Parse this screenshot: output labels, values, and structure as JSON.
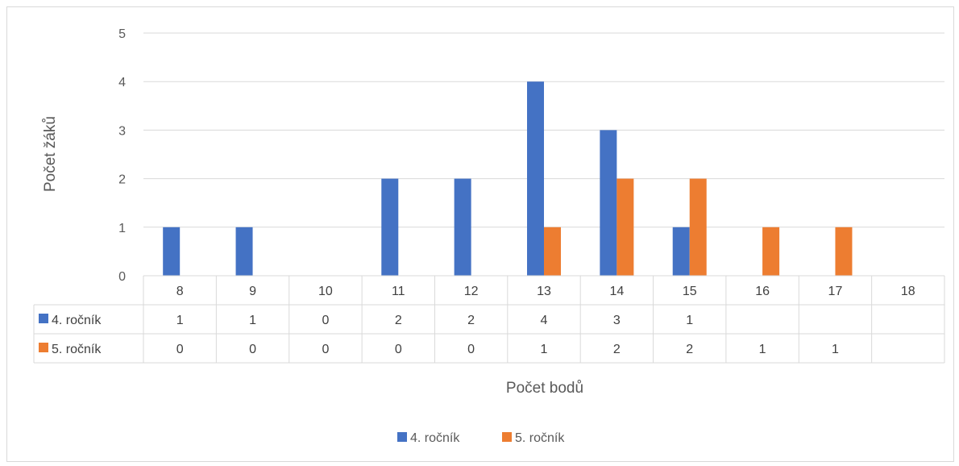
{
  "chart_data": {
    "type": "bar",
    "categories": [
      "8",
      "9",
      "10",
      "11",
      "12",
      "13",
      "14",
      "15",
      "16",
      "17",
      "18"
    ],
    "series": [
      {
        "name": "4. ročník",
        "color": "#4472C4",
        "values": [
          1,
          1,
          0,
          2,
          2,
          4,
          3,
          1,
          null,
          null,
          null
        ]
      },
      {
        "name": "5. ročník",
        "color": "#ED7D31",
        "values": [
          0,
          0,
          0,
          0,
          0,
          1,
          2,
          2,
          1,
          1,
          null
        ]
      }
    ],
    "title": "",
    "xlabel": "Počet bodů",
    "ylabel": "Počet žáků",
    "ylim": [
      0,
      5
    ],
    "yticks": [
      "0",
      "1",
      "2",
      "3",
      "4",
      "5"
    ],
    "grid": true,
    "data_table": true,
    "legend_position": "bottom"
  }
}
